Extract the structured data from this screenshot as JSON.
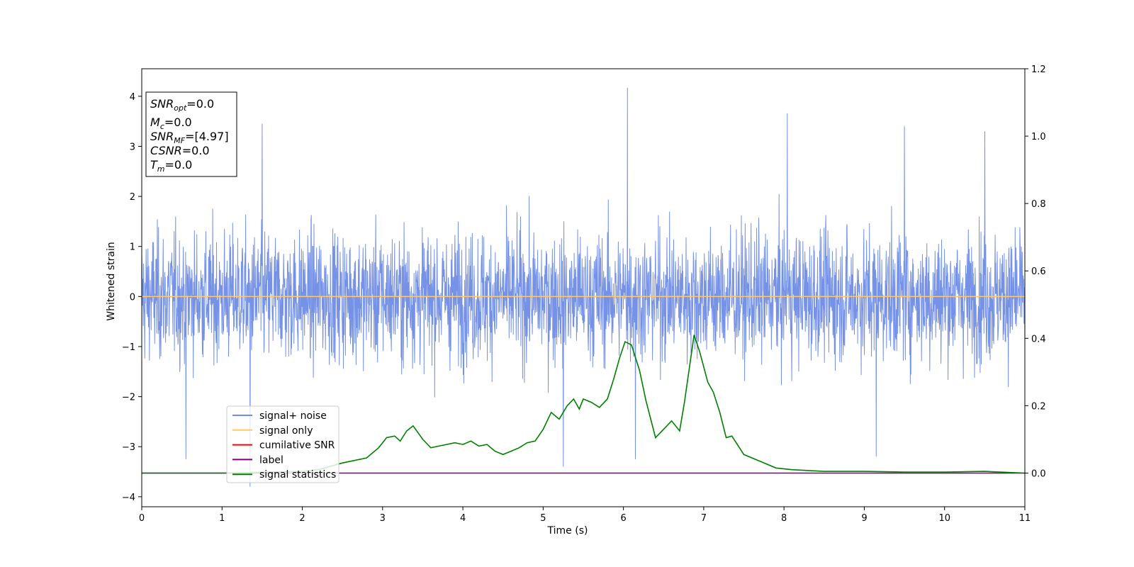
{
  "chart_data": {
    "type": "line",
    "xlabel": "Time (s)",
    "ylabel": "Whitened strain",
    "xlim": [
      0,
      11
    ],
    "ylim_left": [
      -4.2,
      4.55
    ],
    "ylim_right": [
      -0.1,
      1.2
    ],
    "x_ticks": [
      "0",
      "1",
      "2",
      "3",
      "4",
      "5",
      "6",
      "7",
      "8",
      "9",
      "10",
      "11"
    ],
    "y_ticks_left": [
      "−4",
      "−3",
      "−2",
      "−1",
      "0",
      "1",
      "2",
      "3",
      "4"
    ],
    "y_ticks_right": [
      "0.0",
      "0.2",
      "0.4",
      "0.6",
      "0.8",
      "1.0",
      "1.2"
    ],
    "legend_position": "lower-left",
    "grid": false,
    "series": [
      {
        "name": "signal+ noise",
        "axis": "left",
        "color": "#6f8ce6",
        "noise_envelope": {
          "max_abs": 4.17,
          "typical_range": [
            -2.0,
            2.2
          ]
        },
        "notable_peaks": [
          {
            "x": 6.05,
            "y": 4.17
          },
          {
            "x": 8.04,
            "y": 3.66
          },
          {
            "x": 1.5,
            "y": 3.45
          },
          {
            "x": 9.5,
            "y": 3.4
          },
          {
            "x": 10.5,
            "y": 3.3
          },
          {
            "x": 1.35,
            "y": -3.8
          },
          {
            "x": 5.25,
            "y": -3.4
          },
          {
            "x": 0.55,
            "y": -3.25
          },
          {
            "x": 6.15,
            "y": -3.25
          },
          {
            "x": 9.15,
            "y": -3.2
          }
        ]
      },
      {
        "name": "signal only",
        "axis": "left",
        "color": "#ffc966",
        "x": [
          0,
          11
        ],
        "y": [
          0,
          0
        ]
      },
      {
        "name": "cumilative SNR",
        "axis": "right",
        "color": "#ff0000",
        "x": [],
        "y": []
      },
      {
        "name": "label",
        "axis": "right",
        "color": "#800080",
        "x": [
          0,
          11
        ],
        "y": [
          0,
          0
        ]
      },
      {
        "name": "signal statistics",
        "axis": "right",
        "color": "#008000",
        "x": [
          0,
          1.0,
          2.0,
          2.2,
          2.5,
          2.8,
          2.95,
          3.05,
          3.15,
          3.22,
          3.3,
          3.38,
          3.5,
          3.6,
          3.7,
          3.9,
          4.0,
          4.1,
          4.2,
          4.3,
          4.4,
          4.5,
          4.6,
          4.7,
          4.8,
          4.9,
          5.0,
          5.1,
          5.2,
          5.3,
          5.38,
          5.45,
          5.5,
          5.6,
          5.7,
          5.8,
          5.88,
          5.95,
          6.02,
          6.1,
          6.2,
          6.28,
          6.4,
          6.5,
          6.6,
          6.7,
          6.76,
          6.88,
          6.95,
          7.05,
          7.12,
          7.2,
          7.28,
          7.35,
          7.5,
          7.7,
          7.9,
          8.1,
          8.5,
          9.0,
          9.5,
          10.0,
          10.5,
          11.0
        ],
        "y": [
          0,
          0,
          0.005,
          0.01,
          0.03,
          0.045,
          0.075,
          0.105,
          0.11,
          0.095,
          0.125,
          0.14,
          0.1,
          0.075,
          0.08,
          0.09,
          0.085,
          0.095,
          0.08,
          0.085,
          0.065,
          0.055,
          0.065,
          0.075,
          0.09,
          0.095,
          0.13,
          0.18,
          0.16,
          0.2,
          0.22,
          0.19,
          0.22,
          0.21,
          0.195,
          0.22,
          0.28,
          0.34,
          0.39,
          0.38,
          0.305,
          0.215,
          0.105,
          0.13,
          0.155,
          0.125,
          0.21,
          0.41,
          0.36,
          0.27,
          0.24,
          0.18,
          0.105,
          0.11,
          0.055,
          0.035,
          0.015,
          0.01,
          0.005,
          0.005,
          0.003,
          0.003,
          0.005,
          0
        ]
      }
    ]
  },
  "info_box": {
    "snr_opt": {
      "main": "SNR",
      "sub": "opt",
      "value": "=0.0"
    },
    "mc": {
      "main": "M",
      "sub": "c",
      "value": "=0.0"
    },
    "snr_mf": {
      "main": "SNR",
      "sub": "MF",
      "value": "=[4.97]"
    },
    "csnr": {
      "main": "CSNR",
      "value": "=0.0"
    },
    "tm": {
      "main": "T",
      "sub": "m",
      "value": "=0.0"
    }
  }
}
